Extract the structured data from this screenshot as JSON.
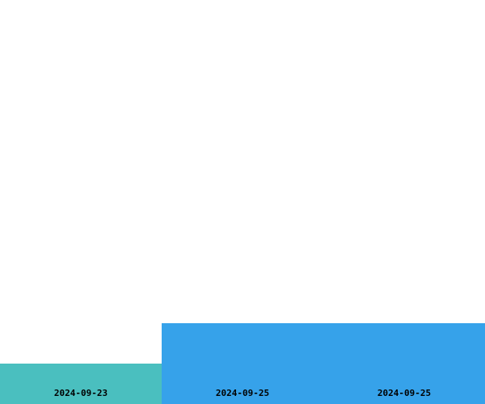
{
  "tiles": [
    {
      "date": "2024-09-23",
      "level": 0.5,
      "color": "#4ABFBF"
    },
    {
      "date": "2024-09-25",
      "level": 1.0,
      "color": "#36A2EA"
    },
    {
      "date": "2024-09-25",
      "level": 1.0,
      "color": "#36A2EA"
    }
  ]
}
